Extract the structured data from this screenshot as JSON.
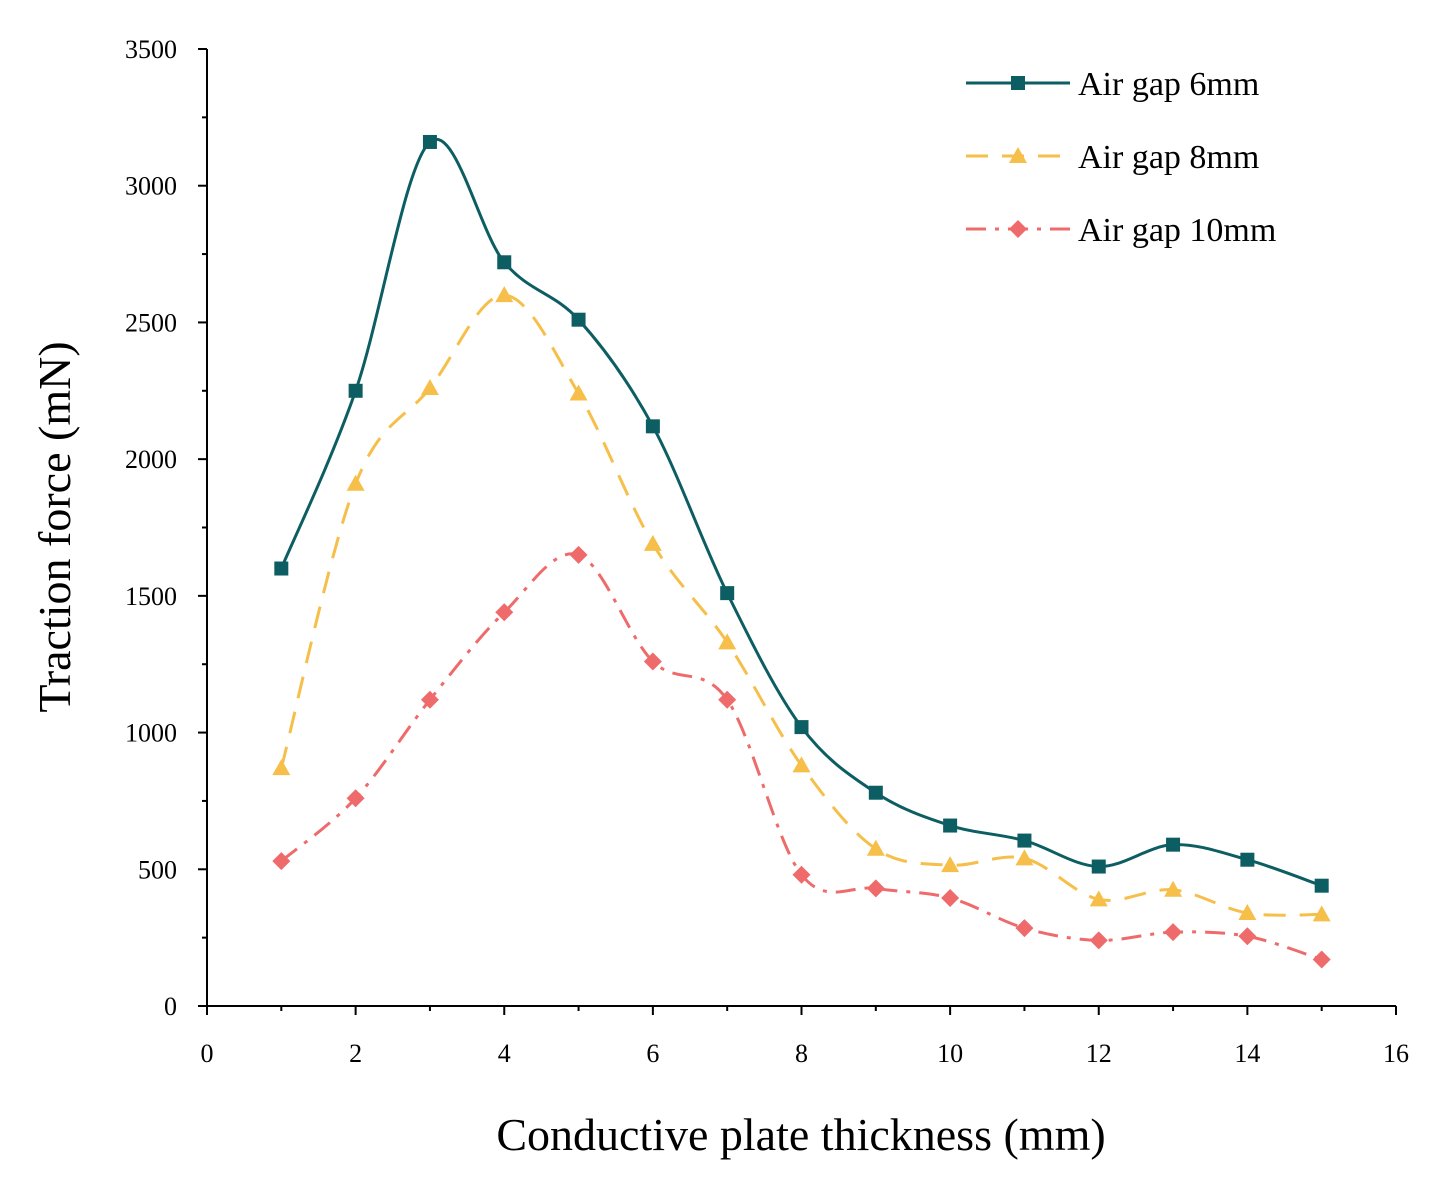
{
  "chart_data": {
    "type": "line",
    "title": "",
    "xlabel": "Conductive plate thickness (mm)",
    "ylabel": "Traction force (mN)",
    "xlim": [
      0,
      16
    ],
    "ylim": [
      0,
      3500
    ],
    "xticks": [
      0,
      2,
      4,
      6,
      8,
      10,
      12,
      14,
      16
    ],
    "yticks": [
      0,
      500,
      1000,
      1500,
      2000,
      2500,
      3000,
      3500
    ],
    "grid": false,
    "legend_position": "top-right",
    "x": [
      1,
      2,
      3,
      4,
      5,
      6,
      7,
      8,
      9,
      10,
      11,
      12,
      13,
      14,
      15
    ],
    "series": [
      {
        "name": "Air gap 6mm",
        "color": "#0d5e63",
        "marker": "square",
        "dash": "solid",
        "values": [
          1600,
          2250,
          3160,
          2720,
          2510,
          2120,
          1510,
          1020,
          780,
          660,
          605,
          510,
          590,
          535,
          440
        ]
      },
      {
        "name": "Air gap 8mm",
        "color": "#f6bf4a",
        "marker": "triangle",
        "dash": "dashed",
        "values": [
          870,
          1910,
          2260,
          2600,
          2240,
          1690,
          1330,
          880,
          575,
          515,
          540,
          390,
          425,
          340,
          335
        ]
      },
      {
        "name": "Air gap 10mm",
        "color": "#ef6b6b",
        "marker": "diamond",
        "dash": "dashdot",
        "values": [
          530,
          760,
          1120,
          1440,
          1650,
          1260,
          1120,
          480,
          430,
          395,
          285,
          240,
          270,
          255,
          170
        ]
      }
    ]
  }
}
